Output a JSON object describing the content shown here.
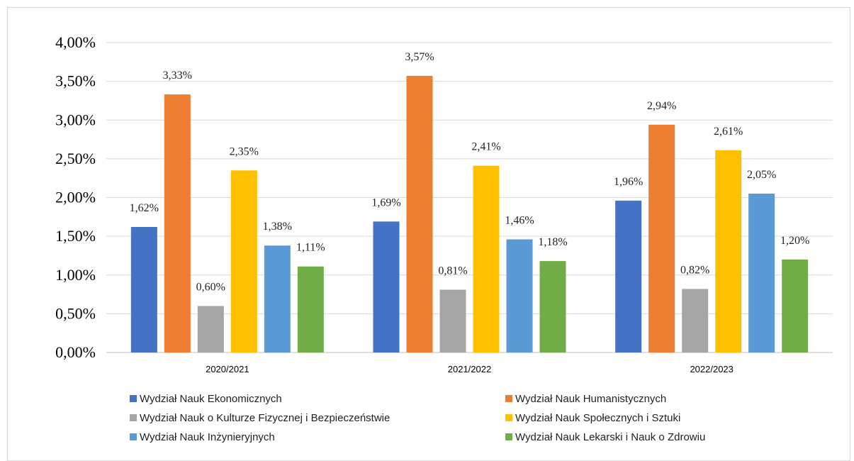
{
  "chart_data": {
    "type": "bar",
    "title": "",
    "xlabel": "",
    "ylabel": "",
    "ylim": [
      0,
      4
    ],
    "yticks": [
      0,
      0.5,
      1,
      1.5,
      2,
      2.5,
      3,
      3.5,
      4
    ],
    "ytick_labels": [
      "0,00%",
      "0,50%",
      "1,00%",
      "1,50%",
      "2,00%",
      "2,50%",
      "3,00%",
      "3,50%",
      "4,00%"
    ],
    "grid": true,
    "legend_position": "bottom",
    "categories": [
      "2020/2021",
      "2021/2022",
      "2022/2023"
    ],
    "series": [
      {
        "name": "Wydział Nauk Ekonomicznych",
        "color": "#4472c4",
        "values": [
          1.62,
          1.69,
          1.96
        ],
        "labels": [
          "1,62%",
          "1,69%",
          "1,96%"
        ]
      },
      {
        "name": "Wydział Nauk Humanistycznych",
        "color": "#ed7d31",
        "values": [
          3.33,
          3.57,
          2.94
        ],
        "labels": [
          "3,33%",
          "3,57%",
          "2,94%"
        ]
      },
      {
        "name": "Wydział Nauk o Kulturze Fizycznej i Bezpieczeństwie",
        "color": "#a5a5a5",
        "values": [
          0.6,
          0.81,
          0.82
        ],
        "labels": [
          "0,60%",
          "0,81%",
          "0,82%"
        ]
      },
      {
        "name": "Wydział Nauk Społecznych i Sztuki",
        "color": "#ffc000",
        "values": [
          2.35,
          2.41,
          2.61
        ],
        "labels": [
          "2,35%",
          "2,41%",
          "2,61%"
        ]
      },
      {
        "name": "Wydział Nauk Inżynieryjnych",
        "color": "#5b9bd5",
        "values": [
          1.38,
          1.46,
          2.05
        ],
        "labels": [
          "1,38%",
          "1,46%",
          "2,05%"
        ]
      },
      {
        "name": "Wydział Nauk Lekarski i Nauk o Zdrowiu",
        "color": "#70ad47",
        "values": [
          1.11,
          1.18,
          1.2
        ],
        "labels": [
          "1,11%",
          "1,18%",
          "1,20%"
        ]
      }
    ]
  }
}
